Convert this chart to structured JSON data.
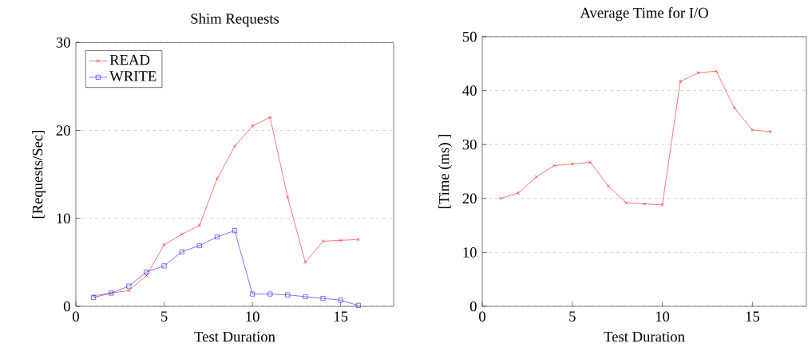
{
  "chart_data": [
    {
      "type": "line",
      "title": "Shim Requests",
      "xlabel": "Test Duration",
      "ylabel": "[Requests/Sec]",
      "x": [
        1,
        2,
        3,
        4,
        5,
        6,
        7,
        8,
        9,
        10,
        11,
        12,
        13,
        14,
        15,
        16
      ],
      "xlim": [
        0,
        18
      ],
      "xticks": [
        0,
        5,
        10,
        15
      ],
      "ylim": [
        0,
        30
      ],
      "yticks": [
        0,
        10,
        20,
        30
      ],
      "grid": "y",
      "legend": "top left",
      "series": [
        {
          "name": "READ",
          "color": "#ff0000",
          "marker": "cross",
          "values": [
            1.2,
            1.5,
            1.8,
            3.5,
            7.0,
            8.2,
            9.2,
            14.5,
            18.2,
            20.5,
            21.5,
            12.4,
            5,
            7.4,
            7.5,
            7.6
          ]
        },
        {
          "name": "WRITE",
          "color": "#0000ff",
          "marker": "square",
          "values": [
            1.0,
            1.5,
            2.3,
            3.9,
            4.6,
            6.2,
            6.9,
            7.9,
            8.6,
            1.4,
            1.4,
            1.3,
            1.1,
            0.9,
            0.7,
            0.1
          ]
        }
      ]
    },
    {
      "type": "line",
      "title": "Average Time for I/O",
      "xlabel": "Test Duration",
      "ylabel": "[Time (ms) ]",
      "x": [
        1,
        2,
        3,
        4,
        5,
        6,
        7,
        8,
        9,
        10,
        11,
        12,
        13,
        14,
        15,
        16
      ],
      "xlim": [
        0,
        18
      ],
      "xticks": [
        0,
        5,
        10,
        15
      ],
      "ylim": [
        0,
        50
      ],
      "yticks": [
        0,
        10,
        20,
        30,
        40,
        50
      ],
      "grid": "y",
      "series": [
        {
          "color": "#ff0000",
          "marker": "cross",
          "values": [
            20.0,
            21.0,
            24.0,
            26.1,
            26.4,
            26.7,
            22.3,
            19.2,
            19.0,
            18.8,
            41.7,
            43.3,
            43.6,
            36.8,
            32.7,
            32.4
          ]
        }
      ]
    }
  ]
}
